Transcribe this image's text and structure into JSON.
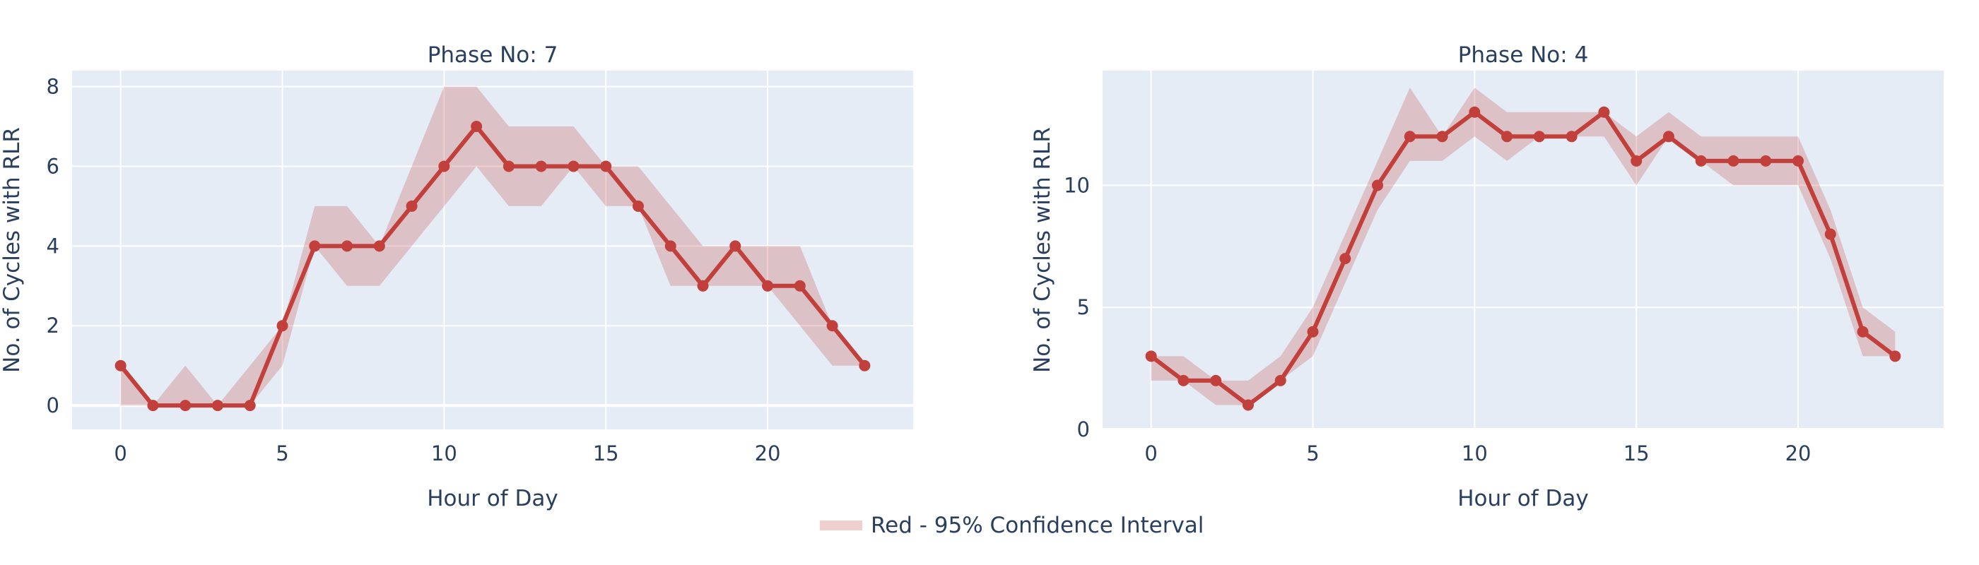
{
  "colors": {
    "line": "#c2403c",
    "band": "rgba(194,64,60,0.25)",
    "plot_bg": "#e5ecf6",
    "grid": "#ffffff",
    "text": "#2a3f5f"
  },
  "legend": {
    "label": "Red - 95% Confidence Interval",
    "placement": "bottom-center"
  },
  "chart_data": [
    {
      "type": "line",
      "title": "Phase No: 7",
      "xlabel": "Hour of Day",
      "ylabel": "No. of Cycles with RLR",
      "xlim": [
        -1.5,
        24.5
      ],
      "ylim": [
        -0.6,
        8.4
      ],
      "xticks": [
        0,
        5,
        10,
        15,
        20
      ],
      "yticks": [
        0,
        2,
        4,
        6,
        8
      ],
      "grid": true,
      "x": [
        0,
        1,
        2,
        3,
        4,
        5,
        6,
        7,
        8,
        9,
        10,
        11,
        12,
        13,
        14,
        15,
        16,
        17,
        18,
        19,
        20,
        21,
        22,
        23
      ],
      "series": [
        {
          "values": [
            1,
            0,
            0,
            0,
            0,
            2,
            4,
            4,
            4,
            5,
            6,
            7,
            6,
            6,
            6,
            6,
            5,
            4,
            3,
            4,
            3,
            3,
            2,
            1
          ]
        }
      ],
      "ci_lower": [
        0,
        0,
        0,
        0,
        0,
        1,
        4,
        3,
        3,
        4,
        5,
        6,
        5,
        5,
        6,
        5,
        5,
        3,
        3,
        3,
        3,
        2,
        1,
        1
      ],
      "ci_upper": [
        1,
        0,
        1,
        0,
        1,
        2,
        5,
        5,
        4,
        6,
        8,
        8,
        7,
        7,
        7,
        6,
        6,
        5,
        4,
        4,
        4,
        4,
        2,
        1
      ]
    },
    {
      "type": "line",
      "title": "Phase No: 4",
      "xlabel": "Hour of Day",
      "ylabel": "No. of Cycles with RLR",
      "xlim": [
        -1.5,
        24.5
      ],
      "ylim": [
        0,
        14.7
      ],
      "xticks": [
        0,
        5,
        10,
        15,
        20
      ],
      "yticks": [
        0,
        5,
        10
      ],
      "grid": true,
      "x": [
        0,
        1,
        2,
        3,
        4,
        5,
        6,
        7,
        8,
        9,
        10,
        11,
        12,
        13,
        14,
        15,
        16,
        17,
        18,
        19,
        20,
        21,
        22,
        23
      ],
      "series": [
        {
          "values": [
            3,
            2,
            2,
            1,
            2,
            4,
            7,
            10,
            12,
            12,
            13,
            12,
            12,
            12,
            13,
            11,
            12,
            11,
            11,
            11,
            11,
            8,
            4,
            3
          ]
        }
      ],
      "ci_lower": [
        2,
        2,
        1,
        1,
        2,
        3,
        6,
        9,
        11,
        11,
        12,
        11,
        12,
        12,
        12,
        10,
        12,
        11,
        10,
        10,
        10,
        7,
        3,
        3
      ],
      "ci_upper": [
        3,
        3,
        2,
        2,
        3,
        5,
        8,
        11,
        14,
        12,
        14,
        13,
        13,
        13,
        13,
        12,
        13,
        12,
        12,
        12,
        12,
        9,
        5,
        4
      ]
    }
  ]
}
